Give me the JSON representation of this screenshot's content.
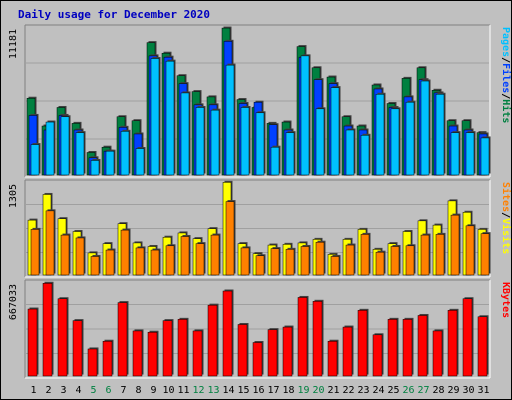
{
  "title": "Daily usage for December 2020",
  "colors": {
    "background": "#c0c0c0",
    "frame": "#ffffff",
    "title": "#0000c0",
    "hits": "#008040",
    "files": "#0040ff",
    "pages": "#00c0ff",
    "visits": "#ffff00",
    "sites": "#ff8000",
    "kbytes": "#ff0000",
    "weekend_label": "#008040",
    "weekday_label": "#000000",
    "grid": "#808080"
  },
  "chart_data": [
    {
      "type": "bar",
      "panel": "hits",
      "ymax_label": "11181",
      "ylim": [
        0,
        11181
      ],
      "legend": [
        "Pages",
        "/",
        "Files",
        "/",
        "Hits"
      ],
      "categories": [
        "1",
        "2",
        "3",
        "4",
        "5",
        "6",
        "7",
        "8",
        "9",
        "10",
        "11",
        "12",
        "13",
        "14",
        "15",
        "16",
        "17",
        "18",
        "19",
        "20",
        "21",
        "22",
        "23",
        "24",
        "25",
        "26",
        "27",
        "28",
        "29",
        "30",
        "31"
      ],
      "weekend_days": [
        "5",
        "6",
        "12",
        "13",
        "19",
        "20",
        "26",
        "27"
      ],
      "series": [
        {
          "name": "Hits",
          "values": [
            5800,
            3700,
            5100,
            3900,
            1700,
            2100,
            4400,
            4100,
            10000,
            9200,
            7500,
            6300,
            5900,
            11100,
            5700,
            5100,
            3900,
            4000,
            9700,
            8100,
            7400,
            4400,
            3700,
            6800,
            5400,
            7300,
            8100,
            6400,
            4100,
            4100,
            3200
          ]
        },
        {
          "name": "Files",
          "values": [
            4500,
            3400,
            4500,
            3400,
            1300,
            1800,
            3600,
            3100,
            9000,
            8900,
            6900,
            5300,
            5300,
            10100,
            5400,
            5500,
            3800,
            3400,
            8900,
            7200,
            6900,
            3700,
            3400,
            6500,
            5100,
            5900,
            7200,
            6200,
            3700,
            3400,
            3100
          ]
        },
        {
          "name": "Pages",
          "values": [
            2300,
            4000,
            4400,
            3200,
            1100,
            1800,
            3300,
            2000,
            8800,
            8600,
            6200,
            5100,
            4900,
            8300,
            5100,
            4700,
            2100,
            3200,
            9000,
            5000,
            6600,
            3400,
            3000,
            6100,
            5000,
            5500,
            7100,
            6100,
            3200,
            3200,
            2800
          ]
        }
      ]
    },
    {
      "type": "bar",
      "panel": "visits",
      "ymax_label": "1305",
      "ylim": [
        0,
        1305
      ],
      "legend": [
        "Sites",
        "/",
        "Visits"
      ],
      "categories": [
        "1",
        "2",
        "3",
        "4",
        "5",
        "6",
        "7",
        "8",
        "9",
        "10",
        "11",
        "12",
        "13",
        "14",
        "15",
        "16",
        "17",
        "18",
        "19",
        "20",
        "21",
        "22",
        "23",
        "24",
        "25",
        "26",
        "27",
        "28",
        "29",
        "30",
        "31"
      ],
      "series": [
        {
          "name": "Visits",
          "values": [
            770,
            1130,
            790,
            610,
            310,
            440,
            720,
            450,
            400,
            530,
            590,
            510,
            650,
            1300,
            440,
            300,
            420,
            430,
            450,
            500,
            290,
            500,
            640,
            360,
            440,
            610,
            760,
            700,
            1040,
            880,
            640
          ]
        },
        {
          "name": "Sites",
          "values": [
            640,
            900,
            560,
            520,
            260,
            350,
            630,
            380,
            350,
            410,
            540,
            440,
            560,
            1030,
            380,
            270,
            370,
            360,
            400,
            460,
            260,
            420,
            570,
            320,
            400,
            410,
            560,
            570,
            840,
            690,
            580
          ]
        }
      ]
    },
    {
      "type": "bar",
      "panel": "kbytes",
      "ymax_label": "667033",
      "ylim": [
        0,
        667033
      ],
      "legend": [
        "KBytes"
      ],
      "categories": [
        "1",
        "2",
        "3",
        "4",
        "5",
        "6",
        "7",
        "8",
        "9",
        "10",
        "11",
        "12",
        "13",
        "14",
        "15",
        "16",
        "17",
        "18",
        "19",
        "20",
        "21",
        "22",
        "23",
        "24",
        "25",
        "26",
        "27",
        "28",
        "29",
        "30",
        "31"
      ],
      "series": [
        {
          "name": "KBytes",
          "values": [
            520,
            720,
            600,
            430,
            210,
            270,
            570,
            350,
            340,
            430,
            440,
            350,
            550,
            660,
            400,
            260,
            360,
            380,
            610,
            580,
            270,
            380,
            510,
            320,
            440,
            440,
            470,
            350,
            510,
            600,
            460
          ]
        }
      ]
    }
  ]
}
